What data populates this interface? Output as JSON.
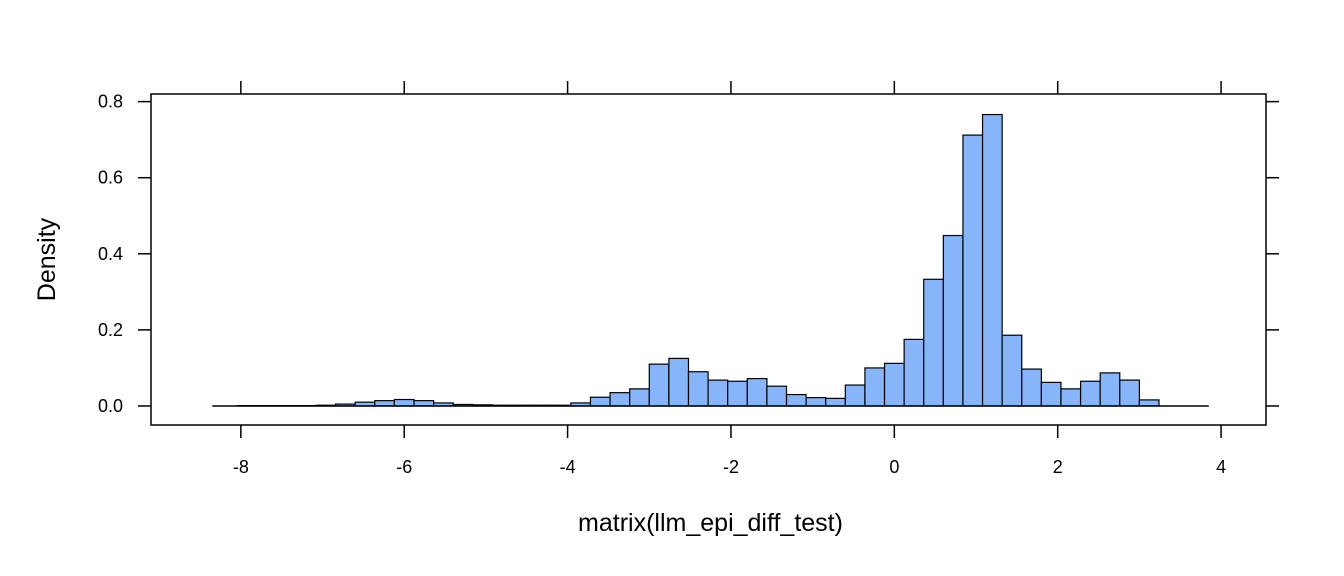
{
  "chart_data": {
    "type": "bar",
    "subtype": "histogram",
    "title": "",
    "xlabel": "matrix(llm_epi_diff_test)",
    "ylabel": "Density",
    "xlim": [
      -9.1,
      4.55
    ],
    "ylim": [
      -0.05,
      0.82
    ],
    "x_ticks": [
      -8,
      -6,
      -4,
      -2,
      0,
      2,
      4
    ],
    "y_ticks": [
      0.0,
      0.2,
      0.4,
      0.6,
      0.8
    ],
    "x_tick_labels": [
      "-8",
      "-6",
      "-4",
      "-2",
      "0",
      "2",
      "4"
    ],
    "y_tick_labels": [
      "0.0",
      "0.2",
      "0.4",
      "0.6",
      "0.8"
    ],
    "baseline_range": [
      -8.35,
      3.85
    ],
    "bin_width": 0.24,
    "bin_starts": [
      -8.04,
      -7.8,
      -7.56,
      -7.32,
      -7.08,
      -6.84,
      -6.6,
      -6.36,
      -6.12,
      -5.88,
      -5.64,
      -5.4,
      -5.16,
      -4.92,
      -4.68,
      -4.44,
      -4.2,
      -3.96,
      -3.72,
      -3.48,
      -3.24,
      -3.0,
      -2.76,
      -2.52,
      -2.28,
      -2.04,
      -1.8,
      -1.56,
      -1.32,
      -1.08,
      -0.84,
      -0.6,
      -0.36,
      -0.12,
      0.12,
      0.36,
      0.6,
      0.84,
      1.08,
      1.32,
      1.56,
      1.8,
      2.04,
      2.28,
      2.52,
      2.76,
      3.0
    ],
    "values": [
      0.001,
      0.001,
      0.001,
      0.001,
      0.002,
      0.005,
      0.01,
      0.014,
      0.017,
      0.014,
      0.008,
      0.004,
      0.003,
      0.002,
      0.002,
      0.002,
      0.002,
      0.008,
      0.023,
      0.035,
      0.045,
      0.11,
      0.125,
      0.09,
      0.068,
      0.065,
      0.072,
      0.052,
      0.03,
      0.022,
      0.02,
      0.055,
      0.1,
      0.112,
      0.175,
      0.333,
      0.448,
      0.712,
      0.766,
      0.186,
      0.097,
      0.062,
      0.045,
      0.065,
      0.087,
      0.068,
      0.016
    ],
    "bar_color": "#87B5F9",
    "edge_color": "#000000"
  }
}
